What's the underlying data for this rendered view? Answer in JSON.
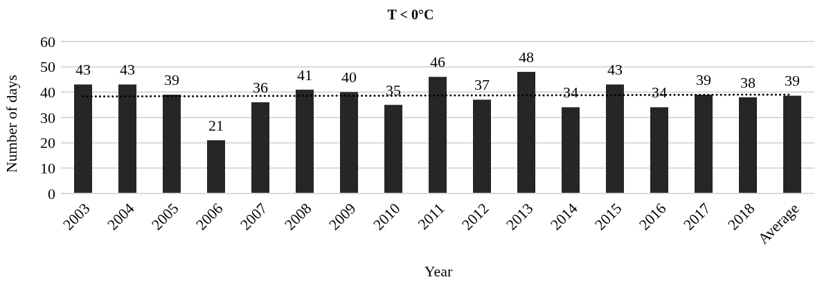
{
  "chart_data": {
    "type": "bar",
    "title": "T < 0°C",
    "xlabel": "Year",
    "ylabel": "Number of days",
    "categories": [
      "2003",
      "2004",
      "2005",
      "2006",
      "2007",
      "2008",
      "2009",
      "2010",
      "2011",
      "2012",
      "2013",
      "2014",
      "2015",
      "2016",
      "2017",
      "2018",
      "Average"
    ],
    "series": [
      {
        "color": "#262626",
        "values": [
          43,
          43,
          39,
          21,
          36,
          41,
          40,
          35,
          46,
          37,
          48,
          34,
          43,
          34,
          39,
          38,
          38.6
        ],
        "value_labels": [
          "43",
          "43",
          "39",
          "21",
          "36",
          "41",
          "40",
          "35",
          "46",
          "37",
          "48",
          "34",
          "43",
          "34",
          "39",
          "38",
          "39"
        ]
      },
      {
        "type": "line",
        "color": "#000000",
        "line_style": "dotted",
        "marker": "none",
        "values": [
          38.3,
          38.3,
          38.4,
          38.4,
          38.5,
          38.5,
          38.6,
          38.6,
          38.7,
          38.7,
          38.7,
          38.8,
          38.8,
          38.9,
          38.9,
          39.0,
          39.0
        ]
      }
    ],
    "ylim": [
      0,
      60
    ],
    "yticks": [
      0,
      10,
      20,
      30,
      40,
      50,
      60
    ],
    "grid": "y",
    "legend": false
  }
}
